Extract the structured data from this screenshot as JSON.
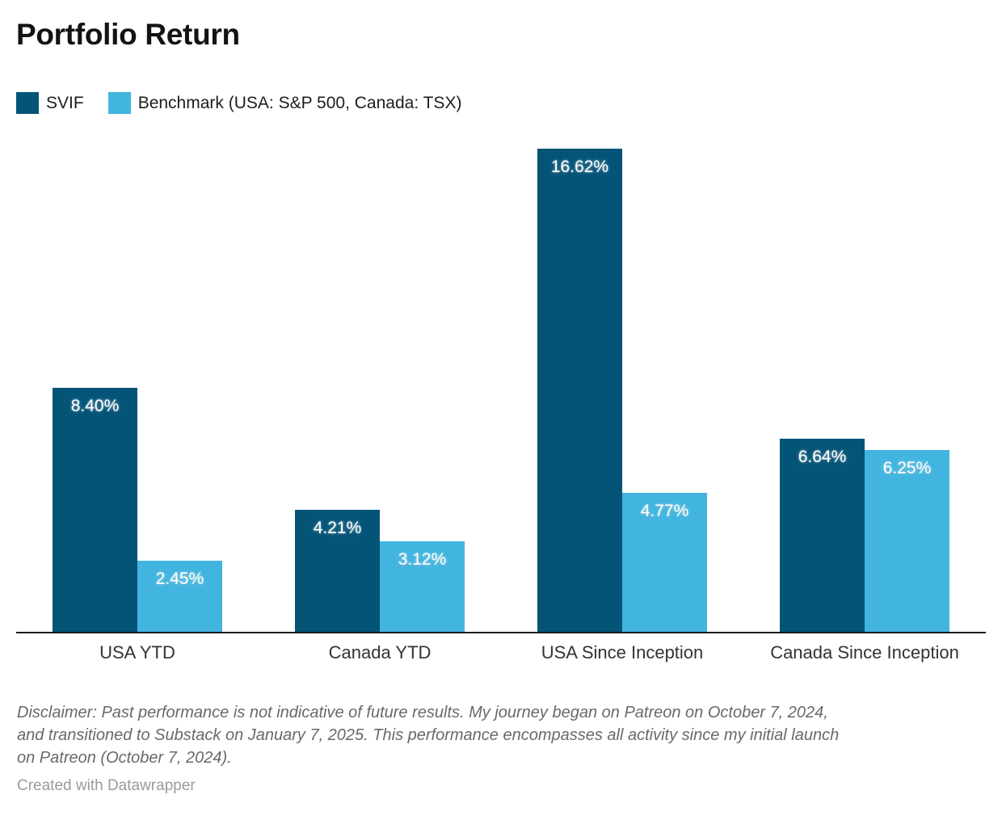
{
  "header": {
    "title": "Portfolio Return"
  },
  "legend": {
    "items": [
      {
        "label": "SVIF",
        "color": "#045478"
      },
      {
        "label": "Benchmark (USA: S&P 500, Canada: TSX)",
        "color": "#41b5e0"
      }
    ]
  },
  "chart_data": {
    "type": "bar",
    "title": "Portfolio Return",
    "categories": [
      "USA YTD",
      "Canada YTD",
      "USA Since Inception",
      "Canada Since Inception"
    ],
    "series": [
      {
        "name": "SVIF",
        "color": "#045478",
        "values": [
          8.4,
          4.21,
          16.62,
          6.64
        ],
        "labels": [
          "8.40%",
          "4.21%",
          "16.62%",
          "6.64%"
        ]
      },
      {
        "name": "Benchmark (USA: S&P 500, Canada: TSX)",
        "color": "#41b5e0",
        "values": [
          2.45,
          3.12,
          4.77,
          6.25
        ],
        "labels": [
          "2.45%",
          "3.12%",
          "4.77%",
          "6.25%"
        ]
      }
    ],
    "value_suffix": "%",
    "ylim": [
      0,
      16.62
    ],
    "grid": false,
    "legend_position": "top-left",
    "xlabel": "",
    "ylabel": ""
  },
  "footnote": {
    "lines": [
      "Disclaimer: Past performance is not indicative of future results. My journey began on Patreon on October 7, 2024,",
      "and transitioned to Substack on January 7, 2025. This performance encompasses all activity since my initial launch",
      "on Patreon (October 7, 2024)."
    ]
  },
  "credit": {
    "text": "Created with Datawrapper"
  }
}
